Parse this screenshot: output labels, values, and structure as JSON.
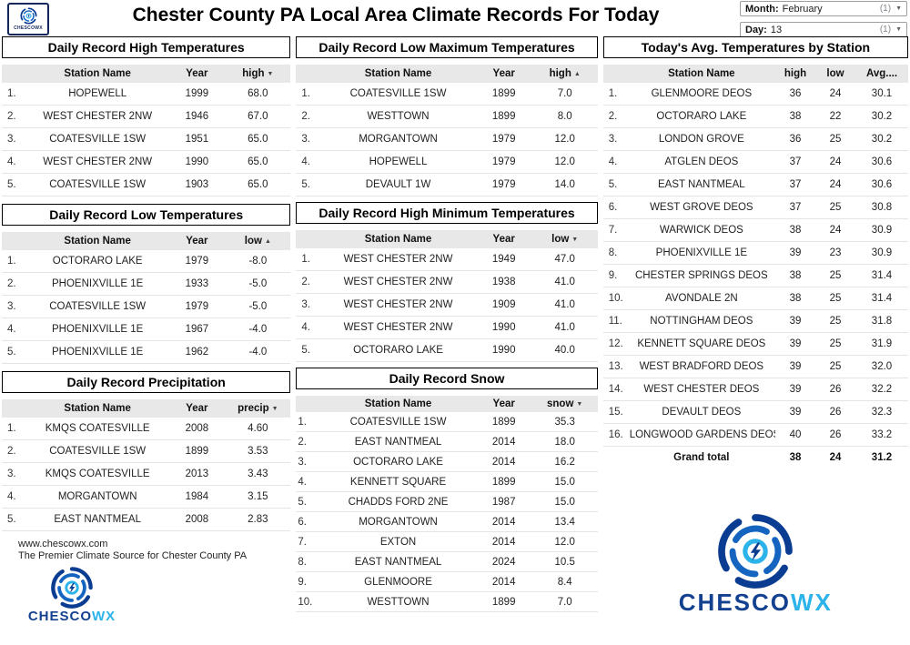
{
  "header": {
    "logo_text": "CHESCOWX",
    "title": "Chester County PA Local Area Climate Records For Today",
    "month_filter": {
      "label": "Month:",
      "value": "February",
      "count": "(1)"
    },
    "day_filter": {
      "label": "Day:",
      "value": "13",
      "count": "(1)"
    }
  },
  "icons": {
    "sort_asc": "▲",
    "sort_desc": "▼",
    "dropdown_caret": "▼",
    "cyclone_logo": "blue-cyclone-swirl-with-lightning-bolt"
  },
  "brand": {
    "name_primary": "CHESCO",
    "name_secondary": "WX",
    "color_primary": "#14418f",
    "color_secondary": "#2bb3ea"
  },
  "footer": {
    "website": "www.chescowx.com",
    "tagline": "The Premier Climate Source for Chester County PA"
  },
  "tables": {
    "record_high": {
      "title": "Daily Record High Temperatures",
      "columns": [
        {
          "label": "Station Name"
        },
        {
          "label": "Year"
        },
        {
          "label": "high",
          "arrow": "desc"
        }
      ],
      "rows": [
        [
          "HOPEWELL",
          "1999",
          "68.0"
        ],
        [
          "WEST CHESTER 2NW",
          "1946",
          "67.0"
        ],
        [
          "COATESVILLE 1SW",
          "1951",
          "65.0"
        ],
        [
          "WEST CHESTER 2NW",
          "1990",
          "65.0"
        ],
        [
          "COATESVILLE 1SW",
          "1903",
          "65.0"
        ]
      ]
    },
    "record_low": {
      "title": "Daily Record Low Temperatures",
      "columns": [
        {
          "label": "Station Name"
        },
        {
          "label": "Year"
        },
        {
          "label": "low",
          "arrow": "asc"
        }
      ],
      "rows": [
        [
          "OCTORARO LAKE",
          "1979",
          "-8.0"
        ],
        [
          "PHOENIXVILLE 1E",
          "1933",
          "-5.0"
        ],
        [
          "COATESVILLE 1SW",
          "1979",
          "-5.0"
        ],
        [
          "PHOENIXVILLE 1E",
          "1967",
          "-4.0"
        ],
        [
          "PHOENIXVILLE 1E",
          "1962",
          "-4.0"
        ]
      ]
    },
    "record_precip": {
      "title": "Daily Record Precipitation",
      "columns": [
        {
          "label": "Station Name"
        },
        {
          "label": "Year"
        },
        {
          "label": "precip",
          "arrow": "desc"
        }
      ],
      "rows": [
        [
          "KMQS COATESVILLE",
          "2008",
          "4.60"
        ],
        [
          "COATESVILLE 1SW",
          "1899",
          "3.53"
        ],
        [
          "KMQS COATESVILLE",
          "2013",
          "3.43"
        ],
        [
          "MORGANTOWN",
          "1984",
          "3.15"
        ],
        [
          "EAST NANTMEAL",
          "2008",
          "2.83"
        ]
      ]
    },
    "record_low_max": {
      "title": "Daily Record Low Maximum Temperatures",
      "columns": [
        {
          "label": "Station Name"
        },
        {
          "label": "Year"
        },
        {
          "label": "high",
          "arrow": "asc"
        }
      ],
      "rows": [
        [
          "COATESVILLE 1SW",
          "1899",
          "7.0"
        ],
        [
          "WESTTOWN",
          "1899",
          "8.0"
        ],
        [
          "MORGANTOWN",
          "1979",
          "12.0"
        ],
        [
          "HOPEWELL",
          "1979",
          "12.0"
        ],
        [
          "DEVAULT 1W",
          "1979",
          "14.0"
        ]
      ]
    },
    "record_high_min": {
      "title": "Daily Record High Minimum Temperatures",
      "columns": [
        {
          "label": "Station Name"
        },
        {
          "label": "Year"
        },
        {
          "label": "low",
          "arrow": "desc"
        }
      ],
      "rows": [
        [
          "WEST CHESTER 2NW",
          "1949",
          "47.0"
        ],
        [
          "WEST CHESTER 2NW",
          "1938",
          "41.0"
        ],
        [
          "WEST CHESTER 2NW",
          "1909",
          "41.0"
        ],
        [
          "WEST CHESTER 2NW",
          "1990",
          "41.0"
        ],
        [
          "OCTORARO LAKE",
          "1990",
          "40.0"
        ]
      ]
    },
    "record_snow": {
      "title": "Daily Record Snow",
      "columns": [
        {
          "label": "Station Name"
        },
        {
          "label": "Year"
        },
        {
          "label": "snow",
          "arrow": "desc"
        }
      ],
      "rows": [
        [
          "COATESVILLE 1SW",
          "1899",
          "35.3"
        ],
        [
          "EAST NANTMEAL",
          "2014",
          "18.0"
        ],
        [
          "OCTORARO LAKE",
          "2014",
          "16.2"
        ],
        [
          "KENNETT SQUARE",
          "1899",
          "15.0"
        ],
        [
          "CHADDS FORD 2NE",
          "1987",
          "15.0"
        ],
        [
          "MORGANTOWN",
          "2014",
          "13.4"
        ],
        [
          "EXTON",
          "2014",
          "12.0"
        ],
        [
          "EAST NANTMEAL",
          "2024",
          "10.5"
        ],
        [
          "GLENMOORE",
          "2014",
          "8.4"
        ],
        [
          "WESTTOWN",
          "1899",
          "7.0"
        ]
      ]
    },
    "avg_temps": {
      "title": "Today's Avg. Temperatures by Station",
      "columns": [
        {
          "label": "Station Name"
        },
        {
          "label": "high"
        },
        {
          "label": "low"
        },
        {
          "label": "Avg...."
        }
      ],
      "rows": [
        [
          "GLENMOORE DEOS",
          "36",
          "24",
          "30.1"
        ],
        [
          "OCTORARO LAKE",
          "38",
          "22",
          "30.2"
        ],
        [
          "LONDON GROVE",
          "36",
          "25",
          "30.2"
        ],
        [
          "ATGLEN DEOS",
          "37",
          "24",
          "30.6"
        ],
        [
          "EAST NANTMEAL",
          "37",
          "24",
          "30.6"
        ],
        [
          "WEST GROVE DEOS",
          "37",
          "25",
          "30.8"
        ],
        [
          "WARWICK DEOS",
          "38",
          "24",
          "30.9"
        ],
        [
          "PHOENIXVILLE 1E",
          "39",
          "23",
          "30.9"
        ],
        [
          "CHESTER SPRINGS DEOS",
          "38",
          "25",
          "31.4"
        ],
        [
          "AVONDALE 2N",
          "38",
          "25",
          "31.4"
        ],
        [
          "NOTTINGHAM DEOS",
          "39",
          "25",
          "31.8"
        ],
        [
          "KENNETT SQUARE DEOS",
          "39",
          "25",
          "31.9"
        ],
        [
          "WEST BRADFORD DEOS",
          "39",
          "25",
          "32.0"
        ],
        [
          "WEST CHESTER DEOS",
          "39",
          "26",
          "32.2"
        ],
        [
          "DEVAULT DEOS",
          "39",
          "26",
          "32.3"
        ],
        [
          "LONGWOOD GARDENS DEOS",
          "40",
          "26",
          "33.2"
        ]
      ],
      "total": {
        "label": "Grand total",
        "values": [
          "38",
          "24",
          "31.2"
        ]
      }
    }
  }
}
